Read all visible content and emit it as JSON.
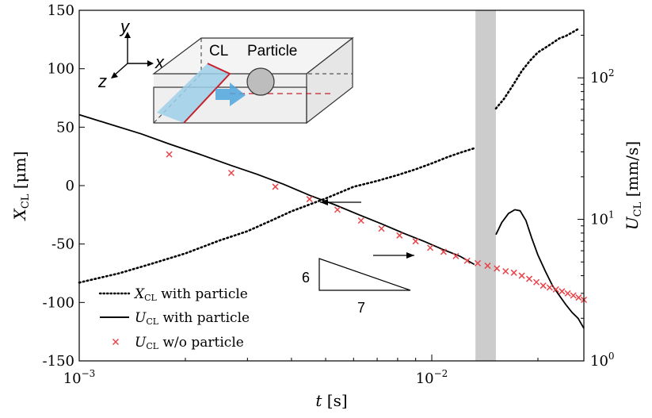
{
  "chart_data": {
    "type": "line",
    "title": "",
    "xlabel": "t [s]",
    "ylabel_left": "X_CL [μm]",
    "ylabel_right": "U_CL [mm/s]",
    "xscale": "log",
    "yscale_right": "log",
    "xlim": [
      0.001,
      0.027
    ],
    "ylim_left": [
      -150,
      150
    ],
    "ylim_right": [
      1.0,
      300
    ],
    "x_ticks": [
      {
        "value": 0.001,
        "base": "10",
        "exp": "−3"
      },
      {
        "value": 0.01,
        "base": "10",
        "exp": "−2"
      }
    ],
    "y_left_ticks": [
      "150",
      "100",
      "50",
      "0",
      "-50",
      "-100",
      "-150"
    ],
    "y_left_tick_values": [
      150,
      100,
      50,
      0,
      -50,
      -100,
      -150
    ],
    "y_right_ticks": [
      {
        "value": 1,
        "base": "10",
        "exp": "0"
      },
      {
        "value": 10,
        "base": "10",
        "exp": "1"
      },
      {
        "value": 100,
        "base": "10",
        "exp": "2"
      }
    ],
    "shaded_band": {
      "x_start": 0.0133,
      "x_end": 0.0152,
      "color": "#cccccc"
    },
    "series": [
      {
        "name": "X_CL with particle",
        "axis": "left",
        "style": "dotted",
        "color": "#000000",
        "segments": [
          {
            "x": [
              0.001,
              0.0013,
              0.0016,
              0.002,
              0.0025,
              0.003,
              0.0035,
              0.004,
              0.005,
              0.006,
              0.007,
              0.008,
              0.009,
              0.01,
              0.011,
              0.012,
              0.0132
            ],
            "y": [
              -83,
              -75,
              -67,
              -58,
              -47,
              -39,
              -30,
              -22,
              -11,
              -1,
              4,
              9,
              14,
              19,
              24,
              28,
              32
            ]
          },
          {
            "x": [
              0.0152,
              0.016,
              0.017,
              0.018,
              0.019,
              0.02,
              0.021,
              0.022,
              0.023,
              0.024,
              0.025,
              0.026
            ],
            "y": [
              66,
              74,
              86,
              98,
              107,
              114,
              118,
              122,
              126,
              128,
              131,
              134
            ]
          }
        ]
      },
      {
        "name": "U_CL with particle",
        "axis": "right",
        "style": "solid",
        "color": "#000000",
        "segments": [
          {
            "x": [
              0.001,
              0.0012,
              0.0015,
              0.0018,
              0.0022,
              0.0027,
              0.0032,
              0.0038,
              0.0045,
              0.0053,
              0.0062,
              0.0072,
              0.0083,
              0.0095,
              0.0108,
              0.012,
              0.0132
            ],
            "y": [
              54.9,
              47.7,
              40.2,
              34.1,
              28.8,
              24.0,
              20.8,
              17.7,
              14.8,
              12.7,
              10.8,
              9.3,
              8.0,
              7.0,
              6.1,
              5.5,
              4.8
            ]
          },
          {
            "x": [
              0.0152,
              0.0158,
              0.0165,
              0.0172,
              0.0178,
              0.0185,
              0.0192,
              0.02,
              0.021,
              0.022,
              0.023,
              0.024,
              0.025,
              0.026,
              0.027
            ],
            "y": [
              7.8,
              9.5,
              11.0,
              11.7,
              11.5,
              9.8,
              7.4,
              5.6,
              4.3,
              3.4,
              2.9,
              2.5,
              2.2,
              2.0,
              1.7
            ]
          }
        ]
      },
      {
        "name": "U_CL w/o particle",
        "axis": "right",
        "style": "markers",
        "marker": "x",
        "color": "#e8444a",
        "x": [
          0.0018,
          0.0027,
          0.0036,
          0.0045,
          0.0054,
          0.0063,
          0.0072,
          0.0081,
          0.009,
          0.0099,
          0.0108,
          0.0117,
          0.0126,
          0.0135,
          0.0144,
          0.0153,
          0.0162,
          0.0171,
          0.018,
          0.0189,
          0.0198,
          0.0207,
          0.0216,
          0.0225,
          0.0234,
          0.0243,
          0.0252,
          0.0261,
          0.027
        ],
        "y": [
          28.8,
          21.3,
          17.0,
          13.9,
          11.7,
          9.8,
          8.6,
          7.7,
          7.0,
          6.3,
          5.9,
          5.5,
          5.1,
          4.9,
          4.7,
          4.5,
          4.3,
          4.2,
          4.0,
          3.8,
          3.6,
          3.4,
          3.3,
          3.2,
          3.1,
          3.0,
          2.9,
          2.8,
          2.7
        ]
      }
    ],
    "legend": {
      "placement": "bottom-left",
      "entries": [
        {
          "sub": "CL",
          "base": "X",
          "text": "with particle",
          "style": "dotted"
        },
        {
          "sub": "CL",
          "base": "U",
          "text": "with particle",
          "style": "solid"
        },
        {
          "sub": "CL",
          "base": "U",
          "text": "w/o particle",
          "style": "markers"
        }
      ]
    },
    "annotations": {
      "slope_rise": "6",
      "slope_run": "7",
      "arrow_left_points_to": "left axis",
      "arrow_right_points_to": "right axis"
    },
    "inset": {
      "labels": {
        "cl": "CL",
        "particle": "Particle",
        "x_axis": "x",
        "y_axis": "y",
        "z_axis": "z"
      },
      "colors": {
        "box_fill": "#efefef",
        "liquid": "#9ecfe8",
        "contact_line": "#c8202c",
        "flow_arrow": "#4da6dd",
        "particle": "#bdbdbd"
      }
    }
  }
}
